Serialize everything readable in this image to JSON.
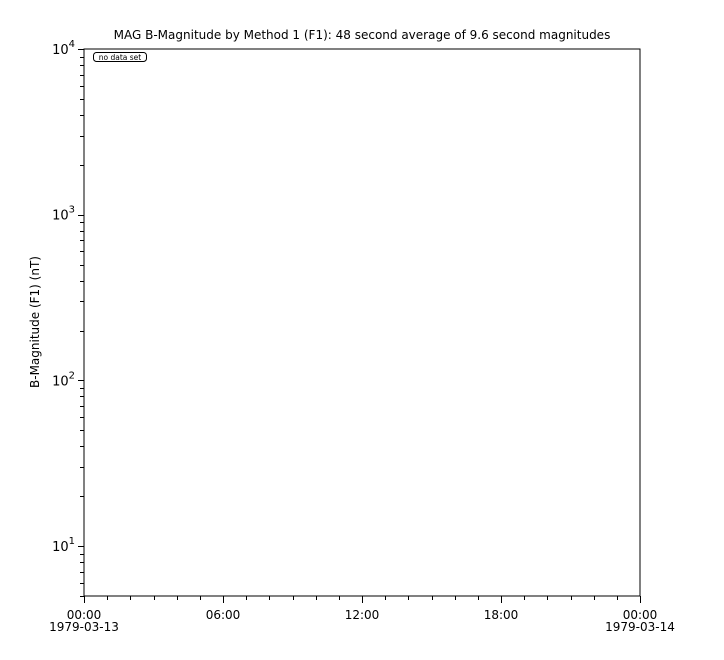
{
  "chart_data": {
    "type": "line",
    "title": "MAG  B-Magnitude by Method 1 (F1): 48 second average of 9.6 second magnitudes",
    "ylabel": "B-Magnitude (F1) (nT)",
    "xlabel": "",
    "yscale": "log",
    "ylim": [
      5,
      10000
    ],
    "y_ticks": [
      {
        "value": 10,
        "base": "10",
        "exp": "1"
      },
      {
        "value": 100,
        "base": "10",
        "exp": "2"
      },
      {
        "value": 1000,
        "base": "10",
        "exp": "3"
      },
      {
        "value": 10000,
        "base": "10",
        "exp": "4"
      }
    ],
    "xlim": [
      "1979-03-13T00:00",
      "1979-03-14T00:00"
    ],
    "x_ticks": [
      {
        "hour": 0,
        "time": "00:00",
        "date": "1979-03-13"
      },
      {
        "hour": 6,
        "time": "06:00",
        "date": ""
      },
      {
        "hour": 12,
        "time": "12:00",
        "date": ""
      },
      {
        "hour": 18,
        "time": "18:00",
        "date": ""
      },
      {
        "hour": 24,
        "time": "00:00",
        "date": "1979-03-14"
      }
    ],
    "series": [],
    "annotation": "no data set",
    "grid": false
  }
}
